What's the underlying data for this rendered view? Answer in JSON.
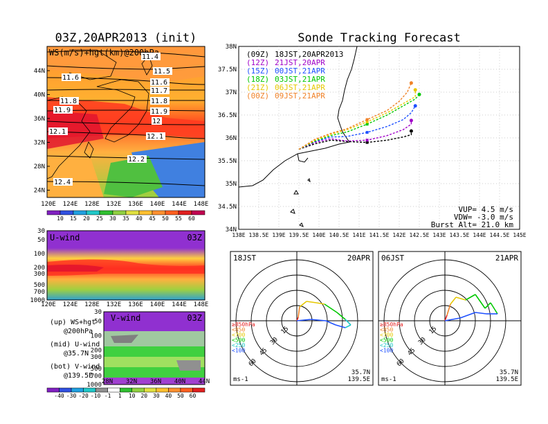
{
  "left": {
    "title": "03Z,20APR2013 (init)",
    "top_panel_label": "WS(m/s)+hgt(km)@200hPa",
    "contour_labels": [
      "11.4",
      "11.5",
      "11.6",
      "11.6",
      "11.7",
      "11.8",
      "11.8",
      "11.9",
      "11.9",
      "12",
      "12.1",
      "12.1",
      "12.2",
      "12.4"
    ],
    "lat_ticks": [
      "44N",
      "40N",
      "36N",
      "32N",
      "28N",
      "24N"
    ],
    "lon_ticks": [
      "120E",
      "124E",
      "128E",
      "132E",
      "136E",
      "140E",
      "144E",
      "148E"
    ],
    "colorbar1_labels": [
      "10",
      "15",
      "20",
      "25",
      "30",
      "35",
      "40",
      "45",
      "50",
      "55",
      "60"
    ],
    "uwind_label": "U-wind",
    "uwind_time": "03Z",
    "p_ticks": [
      "30",
      "50",
      "100",
      "200",
      "300",
      "500",
      "700",
      "1000"
    ],
    "vwind_label": "V-wind",
    "vwind_time": "03Z",
    "vwind_lat_ticks": [
      "28N",
      "32N",
      "36N",
      "40N",
      "44N"
    ],
    "colorbar2_labels": [
      "-40",
      "-30",
      "-20",
      "-10",
      "-1",
      "1",
      "10",
      "20",
      "30",
      "40",
      "50",
      "60"
    ],
    "legend": [
      {
        "line1": "(up) WS+hgt",
        "line2": "@200hPa"
      },
      {
        "line1": "(mid) U-wind",
        "line2": "@35.7N"
      },
      {
        "line1": "(bot) V-wind",
        "line2": "@139.5E"
      }
    ]
  },
  "right": {
    "title": "Sonde Tracking Forecast",
    "lat_ticks": [
      "38N",
      "37.5N",
      "37N",
      "36.5N",
      "36N",
      "35.5N",
      "35N",
      "34.5N",
      "34N"
    ],
    "lon_ticks": [
      "138E",
      "138.5E",
      "139E",
      "139.5E",
      "140E",
      "140.5E",
      "141E",
      "141.5E",
      "142E",
      "142.5E",
      "143E",
      "143.5E",
      "144E",
      "144.5E",
      "145E"
    ],
    "launches": [
      {
        "code": "(09Z)",
        "desc": "18JST,20APR2013",
        "color": "#000000"
      },
      {
        "code": "(12Z)",
        "desc": "21JST,20APR",
        "color": "#a000c8"
      },
      {
        "code": "(15Z)",
        "desc": "00JST,21APR",
        "color": "#1e50ff"
      },
      {
        "code": "(18Z)",
        "desc": "03JST,21APR",
        "color": "#00c800"
      },
      {
        "code": "(21Z)",
        "desc": "06JST,21APR",
        "color": "#e6c800"
      },
      {
        "code": "(00Z)",
        "desc": "09JST,21APR",
        "color": "#f08228"
      }
    ],
    "params": [
      "VUP= 4.5 m/s",
      "VDW= -3.0 m/s",
      "Burst Alt= 21.0 km"
    ]
  },
  "hodographs": [
    {
      "time": "18JST",
      "date": "20APR",
      "lat": "35.7N",
      "lon": "139.5E",
      "unit": "ms-1",
      "rings": [
        "15",
        "30",
        "45",
        "60"
      ]
    },
    {
      "time": "06JST",
      "date": "21APR",
      "lat": "35.7N",
      "lon": "139.5E",
      "unit": "ms-1",
      "rings": [
        "15",
        "30",
        "45",
        "60"
      ]
    }
  ],
  "hodo_legend": [
    {
      "text": "≥850hPa",
      "color": "#e62020"
    },
    {
      "text": "<850",
      "color": "#f08228"
    },
    {
      "text": "<700",
      "color": "#e6c800"
    },
    {
      "text": "<500",
      "color": "#00c800"
    },
    {
      "text": "<250",
      "color": "#20c8c8"
    },
    {
      "text": "<100",
      "color": "#1e50ff"
    }
  ],
  "chart_data": {
    "type": "line",
    "title": "Sonde Tracking Forecast",
    "xlim": [
      138,
      145
    ],
    "ylim": [
      34,
      38
    ],
    "series": [
      {
        "name": "(09Z) 18JST,20APR2013",
        "color": "#000000",
        "x": [
          139.5,
          139.9,
          140.3,
          140.7,
          141.2,
          141.7,
          142.1,
          142.3,
          142.3
        ],
        "y": [
          35.75,
          35.87,
          35.95,
          35.92,
          35.9,
          35.95,
          36.02,
          36.07,
          36.15
        ]
      },
      {
        "name": "(12Z) 21JST,20APR",
        "color": "#a000c8",
        "x": [
          139.5,
          139.9,
          140.3,
          140.7,
          141.2,
          141.7,
          142.1,
          142.3,
          142.3
        ],
        "y": [
          35.75,
          35.9,
          35.98,
          35.93,
          35.95,
          36.05,
          36.18,
          36.3,
          36.38
        ]
      },
      {
        "name": "(15Z) 00JST,21APR",
        "color": "#1e50ff",
        "x": [
          139.5,
          139.9,
          140.3,
          140.7,
          141.2,
          141.7,
          142.1,
          142.3,
          142.4
        ],
        "y": [
          35.75,
          35.92,
          36.02,
          36.03,
          36.12,
          36.25,
          36.4,
          36.55,
          36.7
        ]
      },
      {
        "name": "(18Z) 03JST,21APR",
        "color": "#00c800",
        "x": [
          139.5,
          139.9,
          140.3,
          140.7,
          141.2,
          141.7,
          142.1,
          142.4,
          142.5
        ],
        "y": [
          35.75,
          35.93,
          36.05,
          36.13,
          36.3,
          36.5,
          36.7,
          36.85,
          36.95
        ]
      },
      {
        "name": "(21Z) 06JST,21APR",
        "color": "#e6c800",
        "x": [
          139.5,
          139.9,
          140.3,
          140.7,
          141.2,
          141.7,
          142.1,
          142.4,
          142.4
        ],
        "y": [
          35.75,
          35.95,
          36.08,
          36.18,
          36.35,
          36.55,
          36.75,
          36.9,
          37.05
        ]
      },
      {
        "name": "(00Z) 09JST,21APR",
        "color": "#f08228",
        "x": [
          139.5,
          139.9,
          140.3,
          140.7,
          141.2,
          141.7,
          142.0,
          142.2,
          142.3
        ],
        "y": [
          35.75,
          35.97,
          36.1,
          36.2,
          36.4,
          36.6,
          36.8,
          37.0,
          37.2
        ]
      }
    ]
  }
}
